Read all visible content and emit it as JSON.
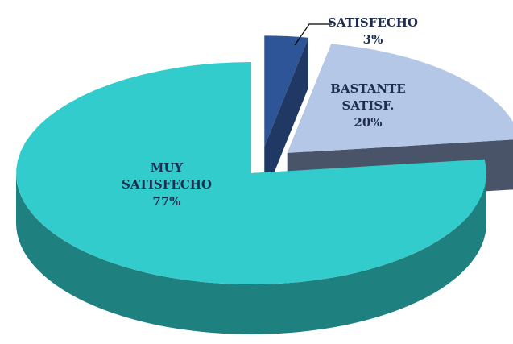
{
  "chart_data": {
    "type": "pie3d",
    "categories": [
      "SATISFECHO",
      "BASTANTE SATISF.",
      "MUY SATISFECHO"
    ],
    "values": [
      3,
      20,
      77
    ],
    "value_labels": [
      "3%",
      "20%",
      "77%"
    ],
    "colors": [
      "#2e5597",
      "#b4c7e7",
      "#33cccc"
    ],
    "side_colors": [
      "#1f3864",
      "#4a5468",
      "#1f8080"
    ],
    "label_color": "#1f2d50"
  }
}
